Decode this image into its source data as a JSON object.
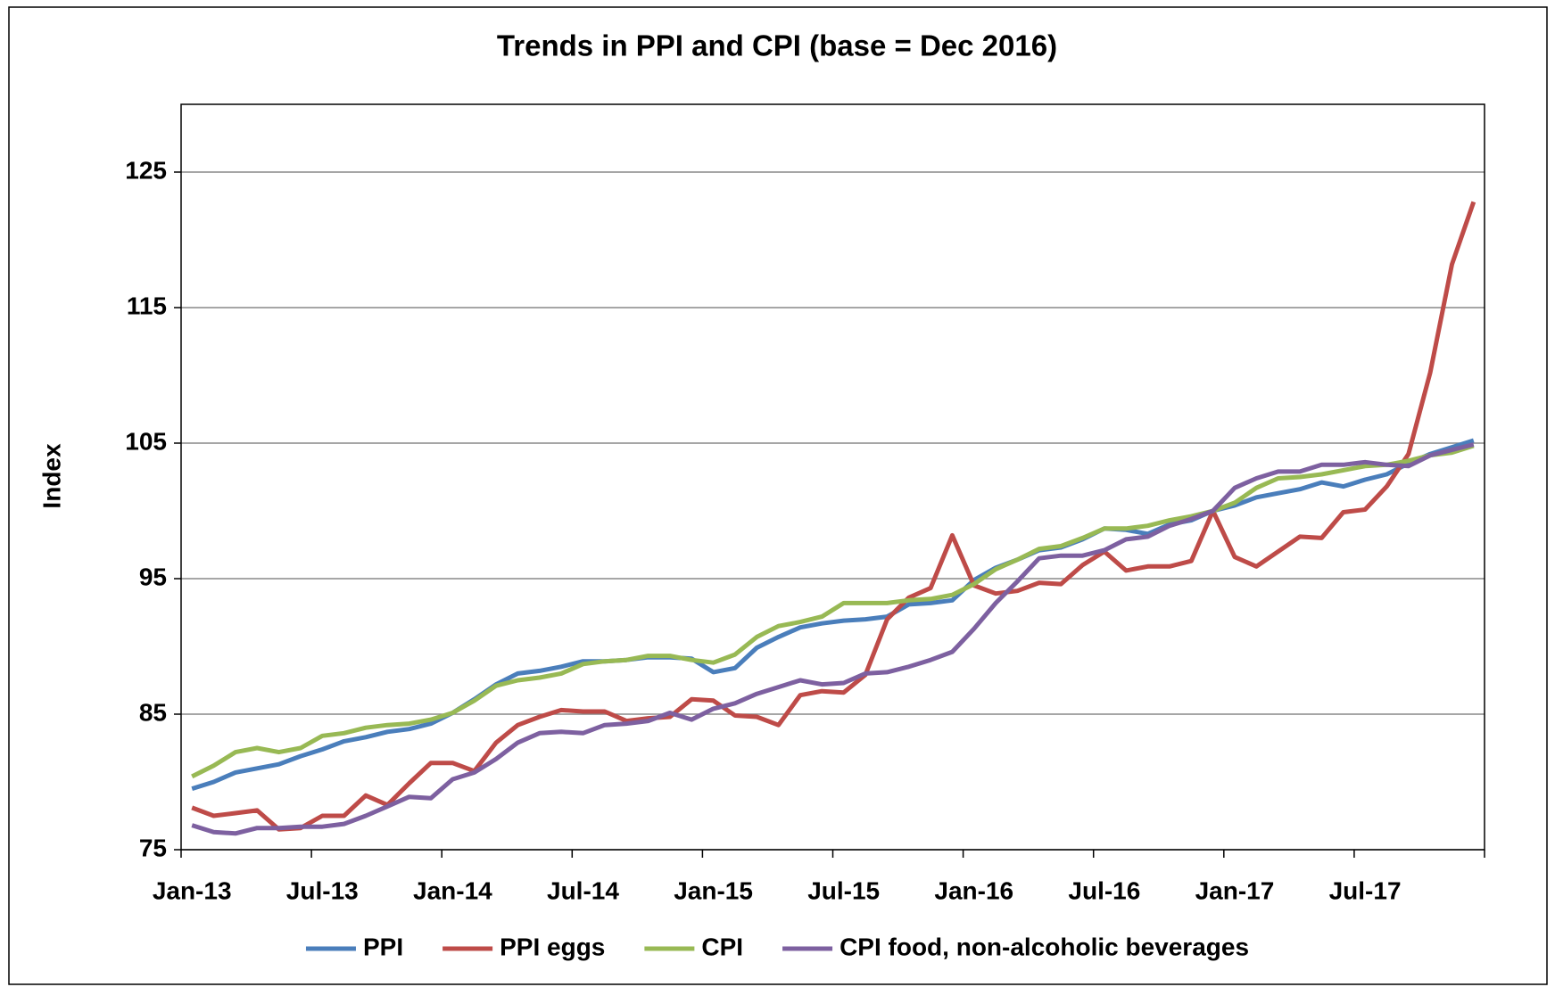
{
  "chart_data": {
    "type": "line",
    "title": "Trends in PPI and CPI (base = Dec 2016)",
    "y_label": "Index",
    "categories": [
      "Jan-13",
      null,
      null,
      null,
      null,
      null,
      "Jul-13",
      null,
      null,
      null,
      null,
      null,
      "Jan-14",
      null,
      null,
      null,
      null,
      null,
      "Jul-14",
      null,
      null,
      null,
      null,
      null,
      "Jan-15",
      null,
      null,
      null,
      null,
      null,
      "Jul-15",
      null,
      null,
      null,
      null,
      null,
      "Jan-16",
      null,
      null,
      null,
      null,
      null,
      "Jul-16",
      null,
      null,
      null,
      null,
      null,
      "Jan-17",
      null,
      null,
      null,
      null,
      null,
      "Jul-17",
      null,
      null,
      null,
      null,
      null
    ],
    "ylim": [
      75,
      130
    ],
    "yticks": [
      75,
      85,
      95,
      105,
      115,
      125
    ],
    "grid": true,
    "legend": "bottom",
    "series": [
      {
        "name": "PPI",
        "color": "#4a7ebb",
        "values": [
          79.5,
          80.0,
          80.7,
          81.0,
          81.3,
          81.9,
          82.4,
          83.0,
          83.3,
          83.7,
          83.9,
          84.3,
          85.1,
          86.1,
          87.2,
          88.0,
          88.2,
          88.5,
          88.9,
          88.9,
          89.0,
          89.2,
          89.2,
          89.1,
          88.1,
          88.4,
          89.9,
          90.7,
          91.4,
          91.7,
          91.9,
          92.0,
          92.2,
          93.1,
          93.2,
          93.4,
          94.9,
          95.8,
          96.4,
          97.1,
          97.3,
          97.9,
          98.7,
          98.6,
          98.3,
          99.0,
          99.3,
          100.0,
          100.4,
          101.0,
          101.3,
          101.6,
          102.1,
          101.8,
          102.3,
          102.7,
          103.5,
          104.2,
          104.7,
          105.2
        ]
      },
      {
        "name": "PPI eggs",
        "color": "#be4b48",
        "values": [
          78.1,
          77.5,
          77.7,
          77.9,
          76.5,
          76.6,
          77.5,
          77.5,
          79.0,
          78.3,
          79.9,
          81.4,
          81.4,
          80.8,
          82.9,
          84.2,
          84.8,
          85.3,
          85.2,
          85.2,
          84.5,
          84.7,
          84.8,
          86.1,
          86.0,
          84.9,
          84.8,
          84.2,
          86.4,
          86.7,
          86.6,
          87.9,
          92.0,
          93.6,
          94.3,
          98.2,
          94.5,
          93.9,
          94.1,
          94.7,
          94.6,
          96.0,
          97.0,
          95.6,
          95.9,
          95.9,
          96.3,
          100.0,
          96.6,
          95.9,
          97.0,
          98.1,
          98.0,
          99.9,
          100.1,
          101.8,
          104.2,
          110.2,
          118.2,
          122.8
        ]
      },
      {
        "name": "CPI",
        "color": "#98b954",
        "values": [
          80.4,
          81.2,
          82.2,
          82.5,
          82.2,
          82.5,
          83.4,
          83.6,
          84.0,
          84.2,
          84.3,
          84.6,
          85.1,
          86.0,
          87.1,
          87.5,
          87.7,
          88.0,
          88.7,
          88.9,
          89.0,
          89.3,
          89.3,
          89.0,
          88.8,
          89.4,
          90.7,
          91.5,
          91.8,
          92.2,
          93.2,
          93.2,
          93.2,
          93.4,
          93.5,
          93.8,
          94.6,
          95.7,
          96.4,
          97.2,
          97.4,
          98.0,
          98.7,
          98.7,
          98.9,
          99.3,
          99.6,
          100.0,
          100.6,
          101.7,
          102.4,
          102.5,
          102.7,
          103.0,
          103.3,
          103.4,
          103.7,
          104.1,
          104.3,
          104.8
        ]
      },
      {
        "name": "CPI food, non-alcoholic beverages",
        "color": "#7d60a0",
        "values": [
          76.8,
          76.3,
          76.2,
          76.6,
          76.6,
          76.7,
          76.7,
          76.9,
          77.5,
          78.2,
          78.9,
          78.8,
          80.2,
          80.7,
          81.7,
          82.9,
          83.6,
          83.7,
          83.6,
          84.2,
          84.3,
          84.5,
          85.1,
          84.6,
          85.4,
          85.8,
          86.5,
          87.0,
          87.5,
          87.2,
          87.3,
          88.0,
          88.1,
          88.5,
          89.0,
          89.6,
          91.3,
          93.2,
          94.8,
          96.5,
          96.7,
          96.7,
          97.1,
          97.9,
          98.1,
          98.9,
          99.4,
          100.0,
          101.7,
          102.4,
          102.9,
          102.9,
          103.4,
          103.4,
          103.6,
          103.4,
          103.3,
          104.1,
          104.5,
          104.9
        ]
      }
    ]
  }
}
